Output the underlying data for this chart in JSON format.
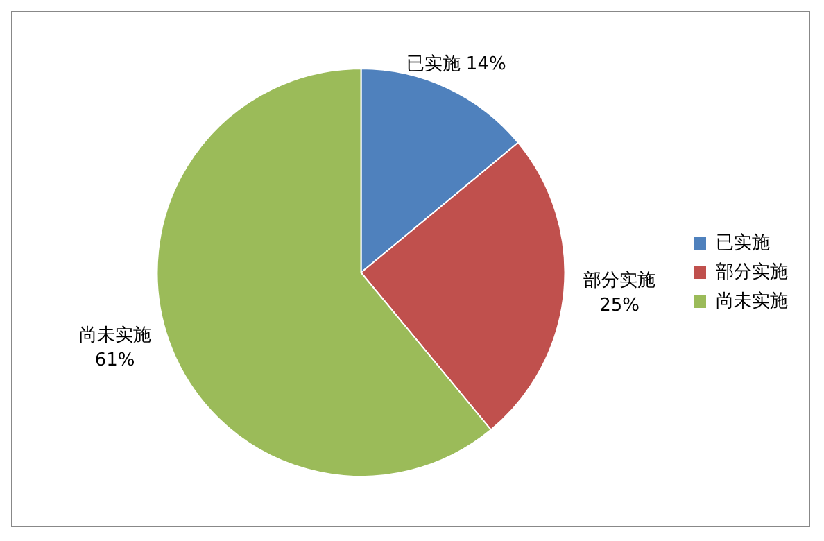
{
  "chart_data": {
    "type": "pie",
    "categories": [
      "已实施",
      "部分实施",
      "尚未实施"
    ],
    "values": [
      14,
      25,
      61
    ],
    "colors": [
      "#4f81bd",
      "#c0504d",
      "#9bbb59"
    ],
    "value_labels": [
      "14%",
      "25%",
      "61%"
    ],
    "legend": "right"
  }
}
